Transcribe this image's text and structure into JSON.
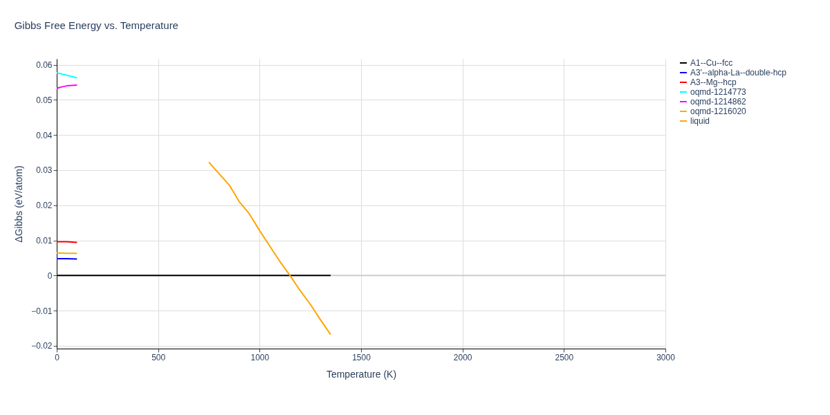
{
  "chart_data": {
    "type": "line",
    "title": "Gibbs Free Energy vs. Temperature",
    "xlabel": "Temperature (K)",
    "ylabel": "ΔGibbs (eV/atom)",
    "xlim": [
      0,
      3000
    ],
    "xticks": [
      0,
      500,
      1000,
      1500,
      2000,
      2500,
      3000
    ],
    "ylim": [
      -0.0208,
      0.0617
    ],
    "yticks": [
      -0.02,
      -0.01,
      0,
      0.01,
      0.02,
      0.03,
      0.04,
      0.05,
      0.06
    ],
    "grid": true,
    "legend": "right",
    "line_style": "solid",
    "marker": "none",
    "series": [
      {
        "name": "A1--Cu--fcc",
        "color": "#000000",
        "x": [
          0,
          1350
        ],
        "values": [
          0,
          0
        ]
      },
      {
        "name": "A3'--alpha-La--double-hcp",
        "color": "#0000ff",
        "x": [
          0,
          50,
          100
        ],
        "values": [
          0.0048,
          0.0048,
          0.0047
        ]
      },
      {
        "name": "A3--Mg--hcp",
        "color": "#ff0000",
        "x": [
          0,
          50,
          100
        ],
        "values": [
          0.0096,
          0.0096,
          0.0094
        ]
      },
      {
        "name": "oqmd-1214773",
        "color": "#00ffff",
        "x": [
          0,
          50,
          100
        ],
        "values": [
          0.0577,
          0.057,
          0.0563
        ]
      },
      {
        "name": "oqmd-1214862",
        "color": "#ff00ff",
        "x": [
          0,
          25,
          50,
          75,
          100
        ],
        "values": [
          0.0533,
          0.0537,
          0.054,
          0.0541,
          0.0542
        ]
      },
      {
        "name": "oqmd-1216020",
        "color": "#e6b800",
        "x": [
          0,
          50,
          100
        ],
        "values": [
          0.0064,
          0.0063,
          0.0063
        ]
      },
      {
        "name": "liquid",
        "color": "#ffa500",
        "x": [
          750,
          800,
          850,
          900,
          950,
          1000,
          1050,
          1100,
          1150,
          1200,
          1250,
          1300,
          1350
        ],
        "values": [
          0.0323,
          0.029,
          0.0258,
          0.021,
          0.0175,
          0.0128,
          0.0084,
          0.004,
          0.0,
          -0.0043,
          -0.0082,
          -0.0126,
          -0.0168
        ]
      }
    ]
  }
}
